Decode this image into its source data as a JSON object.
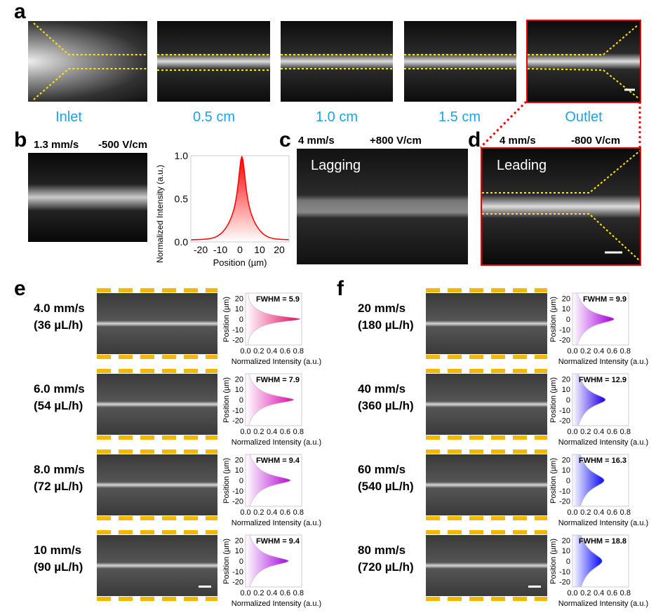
{
  "panels": {
    "a": "a",
    "b": "b",
    "c": "c",
    "d": "d",
    "e": "e",
    "f": "f"
  },
  "panel_a": {
    "captions": [
      "Inlet",
      "0.5 cm",
      "1.0 cm",
      "1.5 cm",
      "Outlet"
    ],
    "caption_color": "#1aa3e8"
  },
  "panel_b": {
    "speed": "1.3 mm/s",
    "field": "-500 V/cm"
  },
  "panel_c": {
    "speed": "4 mm/s",
    "field": "+800 V/cm",
    "label": "Lagging"
  },
  "panel_d": {
    "speed": "4 mm/s",
    "field": "-800 V/cm",
    "label": "Leading"
  },
  "chart_data": [
    {
      "type": "area",
      "panel": "b",
      "xlabel": "Position (µm)",
      "ylabel": "Normalized Intensity (a.u.)",
      "xlim": [
        -25,
        25
      ],
      "ylim": [
        0,
        1
      ],
      "xticks": [
        "-20",
        "-10",
        "0",
        "10",
        "20"
      ],
      "yticks": [
        "0.0",
        "0.5",
        "1.0"
      ],
      "peak": 0.97,
      "peak_x": 1,
      "color": "#ff0000"
    },
    {
      "type": "area",
      "panel": "e",
      "xlabel": "Normalized Intensity (a.u.)",
      "ylabel": "Position (µm)",
      "xticks": [
        "0.0",
        "0.2",
        "0.4",
        "0.6",
        "0.8"
      ],
      "yticks": [
        "20",
        "10",
        "0",
        "-10",
        "-20"
      ],
      "xlim": [
        0,
        0.85
      ],
      "ylim": [
        -25,
        25
      ],
      "rows": [
        {
          "speed": "4.0 mm/s",
          "flow": "(36 µL/h)",
          "fwhm_label": "FWHM = 5.9",
          "fwhm": 5.9,
          "peak": 0.8,
          "color": "#e8186d"
        },
        {
          "speed": "6.0 mm/s",
          "flow": "(54 µL/h)",
          "fwhm_label": "FWHM = 7.9",
          "fwhm": 7.9,
          "peak": 0.7,
          "color": "#e020b0"
        },
        {
          "speed": "8.0 mm/s",
          "flow": "(72 µL/h)",
          "fwhm_label": "FWHM = 9.4",
          "fwhm": 9.4,
          "peak": 0.65,
          "color": "#c020d8"
        },
        {
          "speed": "10 mm/s",
          "flow": "(90 µL/h)",
          "fwhm_label": "FWHM = 9.4",
          "fwhm": 9.4,
          "peak": 0.62,
          "color": "#b020e0"
        }
      ]
    },
    {
      "type": "area",
      "panel": "f",
      "xlabel": "Normalized Intensity (a.u.)",
      "ylabel": "Position (µm)",
      "xticks": [
        "0.0",
        "0.2",
        "0.4",
        "0.6",
        "0.8"
      ],
      "yticks": [
        "20",
        "10",
        "0",
        "-10",
        "-20"
      ],
      "xlim": [
        0,
        0.85
      ],
      "ylim": [
        -25,
        25
      ],
      "rows": [
        {
          "speed": "20 mm/s",
          "flow": "(180 µL/h)",
          "fwhm_label": "FWHM = 9.9",
          "fwhm": 9.9,
          "peak": 0.6,
          "color": "#b010e0"
        },
        {
          "speed": "40 mm/s",
          "flow": "(360 µL/h)",
          "fwhm_label": "FWHM = 12.9",
          "fwhm": 12.9,
          "peak": 0.47,
          "color": "#3010e8"
        },
        {
          "speed": "60 mm/s",
          "flow": "(540 µL/h)",
          "fwhm_label": "FWHM = 16.3",
          "fwhm": 16.3,
          "peak": 0.45,
          "color": "#2020f0"
        },
        {
          "speed": "80 mm/s",
          "flow": "(720 µL/h)",
          "fwhm_label": "FWHM = 18.8",
          "fwhm": 18.8,
          "peak": 0.42,
          "color": "#2020ff"
        }
      ]
    }
  ]
}
